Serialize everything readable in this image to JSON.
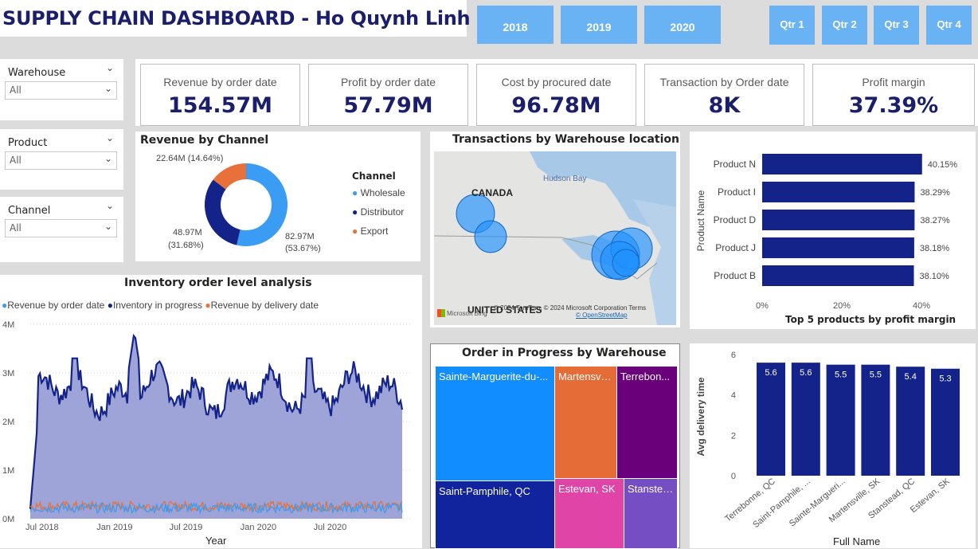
{
  "header": {
    "title": "SUPPLY CHAIN DASHBOARD - Ho Quynh Linh",
    "years": [
      "2018",
      "2019",
      "2020"
    ],
    "quarters": [
      "Qtr 1",
      "Qtr 2",
      "Qtr 3",
      "Qtr 4"
    ]
  },
  "slicers": [
    {
      "label": "Warehouse",
      "value": "All"
    },
    {
      "label": "Product",
      "value": "All"
    },
    {
      "label": "Channel",
      "value": "All"
    }
  ],
  "kpis": [
    {
      "label": "Revenue by order date",
      "value": "154.57M"
    },
    {
      "label": "Profit by order date",
      "value": "57.79M"
    },
    {
      "label": "Cost by procured date",
      "value": "96.78M"
    },
    {
      "label": "Transaction by Order date",
      "value": "8K"
    },
    {
      "label": "Profit margin",
      "value": "37.39%"
    }
  ],
  "colors": {
    "wholesale": "#3a9cf2",
    "distributor": "#13238a",
    "export": "#e8713b",
    "accent": "#1b1f6b",
    "button": "#69b3f5"
  },
  "chart_data": [
    {
      "type": "pie",
      "title": "Revenue by Channel",
      "legend_title": "Channel",
      "legend_position": "right",
      "slices": [
        {
          "label": "Wholesale",
          "value": 82.97,
          "value_label": "82.97M",
          "pct_label": "(53.67%)"
        },
        {
          "label": "Distributor",
          "value": 48.97,
          "value_label": "48.97M",
          "pct_label": "(31.68%)"
        },
        {
          "label": "Export",
          "value": 22.64,
          "value_label": "22.64M (14.64%)",
          "pct_label": ""
        }
      ]
    },
    {
      "type": "area",
      "title": "Inventory order level analysis",
      "xlabel": "Year",
      "ylabel": "",
      "legend_position": "top-left",
      "ylim": [
        0,
        4000000
      ],
      "yticks": [
        "0M",
        "1M",
        "2M",
        "3M",
        "4M"
      ],
      "xticks": [
        "Jul 2018",
        "Jan 2019",
        "Jul 2019",
        "Jan 2020",
        "Jul 2020"
      ],
      "series": [
        {
          "name": "Revenue by order date",
          "approx_level": 150000
        },
        {
          "name": "Inventory in progress",
          "approx_level": 2600000,
          "peak": 3900000,
          "start": "2018-06-01",
          "end": "2020-12-31"
        },
        {
          "name": "Revenue by delivery date",
          "approx_level": 200000
        }
      ]
    },
    {
      "type": "map",
      "title": "Transactions by Warehouse location",
      "labels": [
        "CANADA",
        "UNITED STATES",
        "Hudson Bay"
      ],
      "attribution": "© 2024 TomTom, © 2024 Microsoft Corporation",
      "terms": "Terms",
      "osm": "© OpenStreetMap",
      "logo": "Microsoft Bing"
    },
    {
      "type": "bar",
      "title": "Top 5 products by profit margin",
      "orientation": "horizontal",
      "xlabel": "",
      "ylabel": "Product Name",
      "categories": [
        "Product N",
        "Product I",
        "Product D",
        "Product J",
        "Product B"
      ],
      "values": [
        40.15,
        38.29,
        38.27,
        38.18,
        38.1
      ],
      "value_labels": [
        "40.15%",
        "38.29%",
        "38.27%",
        "38.18%",
        "38.10%"
      ],
      "xlim": [
        0,
        40
      ],
      "xticks": [
        "0%",
        "20%",
        "40%"
      ]
    },
    {
      "type": "treemap",
      "title": "Order in Progress by Warehouse",
      "items": [
        {
          "label": "Sainte-Marguerite-du-...",
          "color": "#118dff"
        },
        {
          "label": "Saint-Pamphile, QC",
          "color": "#12239e"
        },
        {
          "label": "Martensvil...",
          "color": "#e66c37"
        },
        {
          "label": "Terrebon...",
          "color": "#6b007b"
        },
        {
          "label": "Estevan, SK",
          "color": "#e044a7"
        },
        {
          "label": "Stanstea...",
          "color": "#744ec2"
        }
      ]
    },
    {
      "type": "bar",
      "title": "",
      "xlabel": "Full Name",
      "ylabel": "Avg delivery time",
      "categories": [
        "Terrebonne, QC",
        "Saint-Pamphile, ...",
        "Sainte-Margueri...",
        "Martensville, SK",
        "Stanstead, QC",
        "Estevan, SK"
      ],
      "values": [
        5.6,
        5.6,
        5.5,
        5.5,
        5.4,
        5.3
      ],
      "ylim": [
        0,
        6
      ],
      "yticks": [
        "0",
        "2",
        "4",
        "6"
      ]
    }
  ]
}
